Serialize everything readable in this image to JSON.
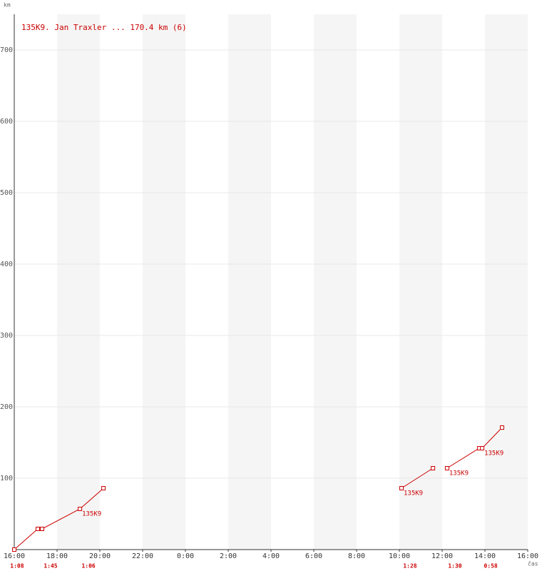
{
  "chart_data": {
    "type": "line",
    "title": "135K9. Jan Traxler ... 170.4 km (6)",
    "y_label": "km",
    "x_label": "čas",
    "x": [
      0,
      1.1,
      1.3,
      3.07,
      4.17,
      null,
      18.1,
      19.57,
      null,
      20.23,
      21.73,
      21.87,
      22.8
    ],
    "values": [
      0,
      29,
      29,
      57,
      86,
      null,
      86,
      114,
      null,
      114,
      142,
      142,
      171
    ],
    "color": "#cc0000",
    "xlim": [
      0,
      24
    ],
    "ylim": [
      0,
      750
    ],
    "xticks": [
      {
        "value": 0,
        "label": "16:00"
      },
      {
        "value": 2,
        "label": "18:00"
      },
      {
        "value": 4,
        "label": "20:00"
      },
      {
        "value": 6,
        "label": "22:00"
      },
      {
        "value": 8,
        "label": "0:00"
      },
      {
        "value": 10,
        "label": "2:00"
      },
      {
        "value": 12,
        "label": "4:00"
      },
      {
        "value": 14,
        "label": "6:00"
      },
      {
        "value": 16,
        "label": "8:00"
      },
      {
        "value": 18,
        "label": "10:00"
      },
      {
        "value": 20,
        "label": "12:00"
      },
      {
        "value": 22,
        "label": "14:00"
      },
      {
        "value": 24,
        "label": "16:00"
      }
    ],
    "yticks": [
      100,
      200,
      300,
      400,
      500,
      600,
      700
    ],
    "grid": true,
    "point_labels": [
      {
        "x": 3.07,
        "y": 57,
        "text": "135K9"
      },
      {
        "x": 18.1,
        "y": 86,
        "text": "135K9"
      },
      {
        "x": 20.23,
        "y": 114,
        "text": "135K9"
      },
      {
        "x": 21.87,
        "y": 142,
        "text": "135K9"
      }
    ],
    "durations": [
      {
        "x": 0.13,
        "label": "1:08"
      },
      {
        "x": 1.7,
        "label": "1:45"
      },
      {
        "x": 3.47,
        "label": "1:06"
      },
      {
        "x": 18.5,
        "label": "1:28"
      },
      {
        "x": 20.6,
        "label": "1:30"
      },
      {
        "x": 22.27,
        "label": "0:58"
      }
    ]
  }
}
